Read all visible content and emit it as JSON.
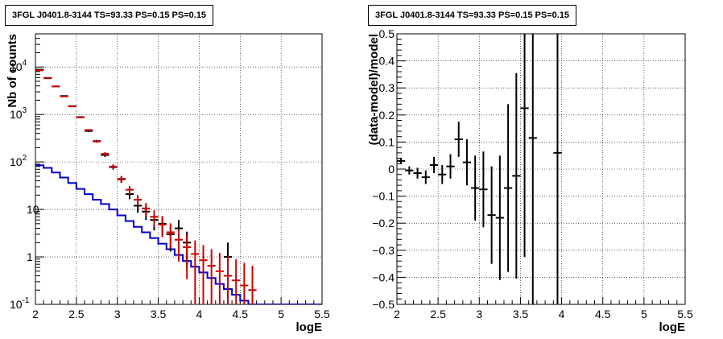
{
  "chart_data": [
    {
      "type": "line",
      "title": "3FGL J0401.8-3144 TS=93.33 PS=0.15 PS=0.15",
      "xlabel": "logE",
      "ylabel": "Nb of counts",
      "xlim": [
        2,
        5.5
      ],
      "ylim": [
        0.1,
        50000
      ],
      "yscale": "log",
      "grid": true,
      "x_ticks": [
        "2",
        "2.5",
        "3",
        "3.5",
        "4",
        "4.5",
        "5",
        "5.5"
      ],
      "y_ticks": [
        {
          "value": 0.1,
          "base": "10",
          "exp": "-1"
        },
        {
          "value": 1,
          "base": "1",
          "exp": ""
        },
        {
          "value": 10,
          "base": "10",
          "exp": ""
        },
        {
          "value": 100,
          "base": "10",
          "exp": "2"
        },
        {
          "value": 1000,
          "base": "10",
          "exp": "3"
        },
        {
          "value": 10000,
          "base": "10",
          "exp": "4"
        }
      ],
      "colors": {
        "data": "#000000",
        "total_model": "#cc0000",
        "source_model": "#0000cc"
      },
      "series": [
        {
          "role": "data",
          "x": [
            2.05,
            2.15,
            2.25,
            2.35,
            2.45,
            2.55,
            2.65,
            2.75,
            2.85,
            2.95,
            3.05,
            3.15,
            3.25,
            3.35,
            3.45,
            3.55,
            3.65,
            3.75,
            3.85,
            3.95,
            4.05,
            4.15,
            4.25,
            4.35
          ],
          "y": [
            8800,
            5800,
            3900,
            2450,
            1500,
            880,
            450,
            275,
            140,
            78,
            43,
            21,
            12,
            9,
            6,
            5,
            3,
            4,
            2,
            0,
            0,
            0,
            0,
            1
          ],
          "yerr": [
            94,
            76,
            62,
            49,
            39,
            30,
            21,
            17,
            12,
            9,
            6.6,
            4.6,
            3.5,
            3.0,
            2.4,
            2.2,
            1.7,
            2.0,
            1.4,
            0,
            0,
            0,
            0,
            1.0
          ]
        },
        {
          "role": "total_model",
          "x": [
            2.05,
            2.15,
            2.25,
            2.35,
            2.45,
            2.55,
            2.65,
            2.75,
            2.85,
            2.95,
            3.05,
            3.15,
            3.25,
            3.35,
            3.45,
            3.55,
            3.65,
            3.75,
            3.85,
            3.95,
            4.05,
            4.15,
            4.25,
            4.35,
            4.45,
            4.55,
            4.65
          ],
          "y": [
            8500,
            5900,
            3900,
            2400,
            1480,
            870,
            470,
            270,
            148,
            80,
            44,
            26,
            16,
            10.5,
            7.0,
            4.8,
            3.3,
            2.3,
            1.6,
            1.15,
            0.85,
            0.65,
            0.5,
            0.4,
            0.32,
            0.25,
            0.2
          ],
          "yerr": [
            92,
            77,
            62,
            49,
            38,
            29,
            21.7,
            16.4,
            12.2,
            8.9,
            6.6,
            5.1,
            4.0,
            3.2,
            2.6,
            2.2,
            1.8,
            1.5,
            1.26,
            1.07,
            0.92,
            0.81,
            0.71,
            0.63,
            0.57,
            0.5,
            0.45
          ]
        },
        {
          "role": "source_model",
          "step_edges": [
            2.0,
            2.1,
            2.2,
            2.3,
            2.4,
            2.5,
            2.6,
            2.7,
            2.8,
            2.9,
            3.0,
            3.1,
            3.2,
            3.3,
            3.4,
            3.5,
            3.6,
            3.7,
            3.8,
            3.9,
            4.0,
            4.1,
            4.2,
            4.3,
            4.4,
            4.5,
            4.6,
            4.7,
            4.8,
            4.9,
            5.0,
            5.1,
            5.2,
            5.3,
            5.4,
            5.5
          ],
          "y": [
            85,
            75,
            60,
            47,
            36,
            27,
            21,
            16,
            13,
            10,
            7.5,
            5.7,
            4.3,
            3.3,
            2.5,
            1.9,
            1.45,
            1.1,
            0.82,
            0.62,
            0.47,
            0.36,
            0.27,
            0.21,
            0.16,
            0.12,
            0.1,
            0.1,
            0.1,
            0.1,
            0.1,
            0.1,
            0.1,
            0.1,
            0.1
          ]
        }
      ]
    },
    {
      "type": "scatter",
      "title": "3FGL J0401.8-3144 TS=93.33 PS=0.15 PS=0.15",
      "xlabel": "logE",
      "ylabel": "(data-model)/model",
      "xlim": [
        2,
        5.5
      ],
      "ylim": [
        -0.5,
        0.5
      ],
      "grid": true,
      "x_ticks": [
        "2",
        "2.5",
        "3",
        "3.5",
        "4",
        "4.5",
        "5",
        "5.5"
      ],
      "y_ticks": [
        "0.5",
        "0.4",
        "0.3",
        "0.2",
        "0.1",
        "0",
        "−0.1",
        "−0.2",
        "−0.3",
        "−0.4",
        "−0.5"
      ],
      "points": {
        "x": [
          2.05,
          2.15,
          2.25,
          2.35,
          2.45,
          2.55,
          2.65,
          2.75,
          2.85,
          2.95,
          3.05,
          3.15,
          3.25,
          3.35,
          3.45,
          3.55,
          3.65,
          3.95
        ],
        "y": [
          0.03,
          -0.005,
          -0.015,
          -0.03,
          0.015,
          -0.02,
          0.01,
          0.11,
          0.025,
          -0.07,
          -0.075,
          -0.17,
          -0.18,
          -0.07,
          -0.025,
          0.225,
          0.115,
          0.06
        ],
        "yerr": [
          0.012,
          0.015,
          0.02,
          0.025,
          0.03,
          0.035,
          0.045,
          0.065,
          0.085,
          0.12,
          0.14,
          0.18,
          0.23,
          0.31,
          0.38,
          0.55,
          0.68,
          1.2
        ]
      }
    }
  ]
}
